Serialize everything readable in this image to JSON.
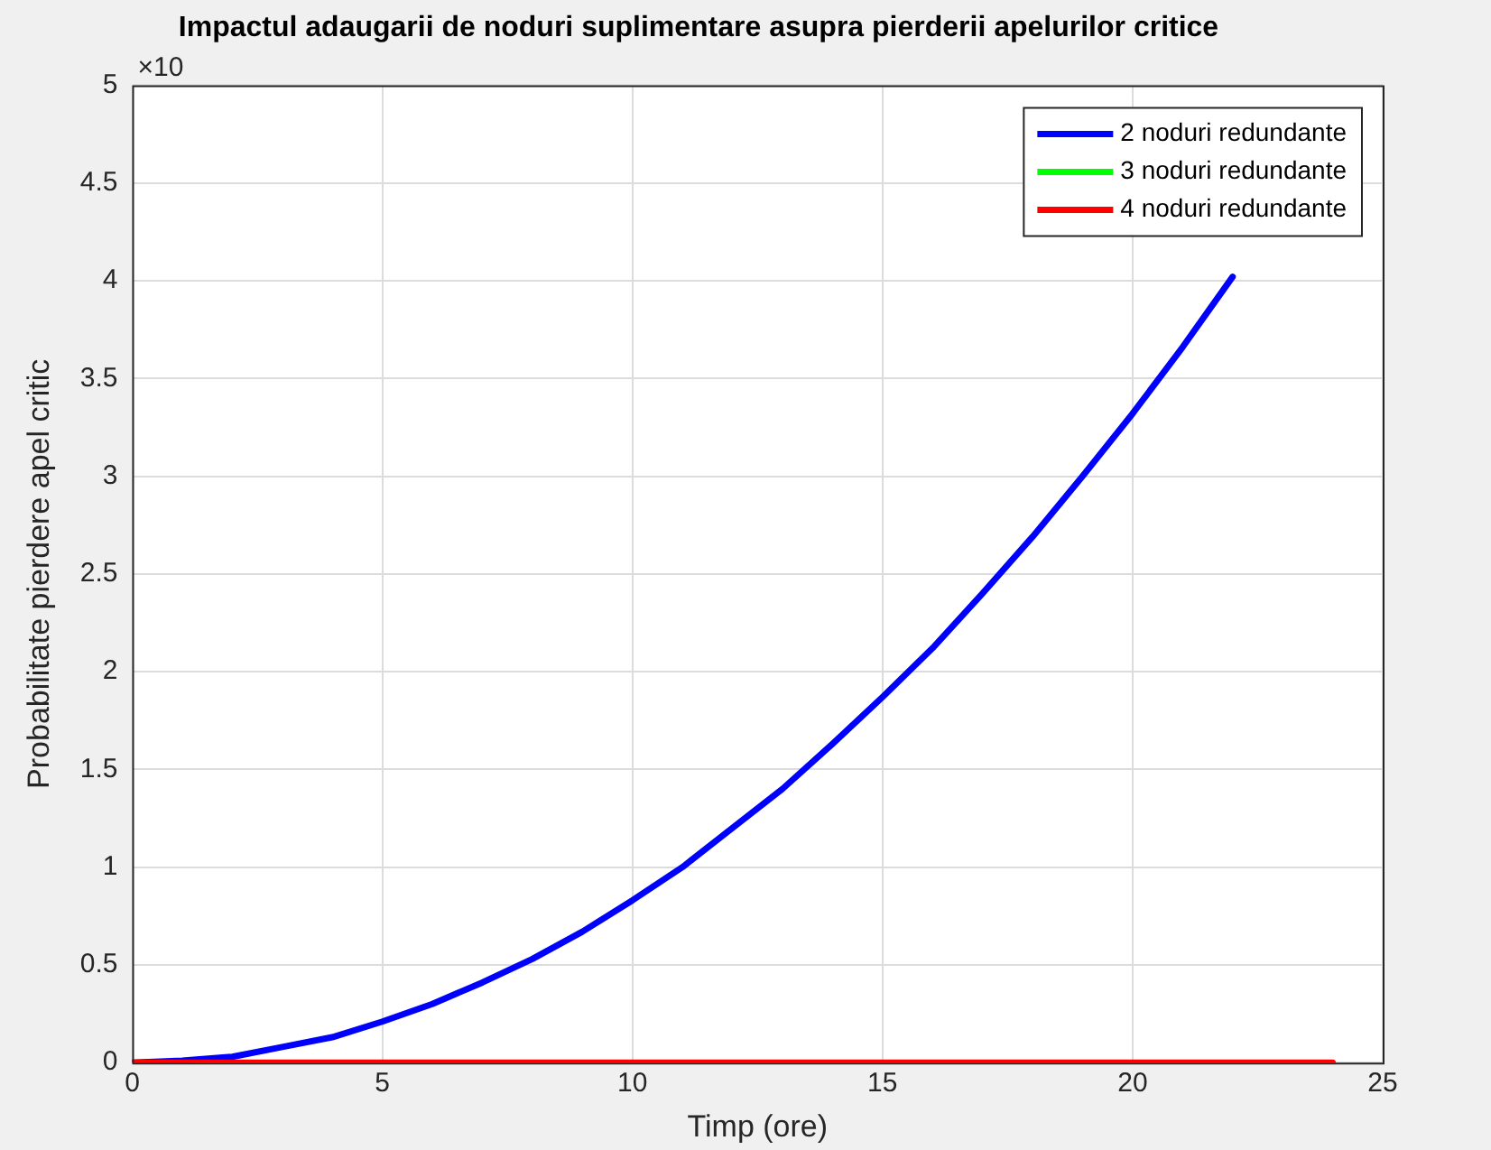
{
  "chart_data": {
    "type": "line",
    "title": "Impactul adaugarii de noduri suplimentare asupra pierderii apelurilor critice",
    "xlabel": "Timp (ore)",
    "ylabel": "Probabilitate pierdere apel critic",
    "annotations": [
      "×10"
    ],
    "series": [
      {
        "name": "2 noduri redundante",
        "color": "#0000ff",
        "x": [
          0,
          1,
          2,
          3,
          4,
          5,
          6,
          7,
          8,
          9,
          10,
          11,
          12,
          13,
          14,
          15,
          16,
          17,
          18,
          19,
          20,
          21,
          22
        ],
        "values": [
          0,
          0.01,
          0.03,
          0.08,
          0.13,
          0.21,
          0.3,
          0.41,
          0.53,
          0.67,
          0.83,
          1.0,
          1.2,
          1.4,
          1.63,
          1.87,
          2.12,
          2.4,
          2.69,
          3.0,
          3.32,
          3.66,
          4.02
        ]
      },
      {
        "name": "3 noduri redundante",
        "color": "#00ff00"
      },
      {
        "name": "4 noduri redundante",
        "color": "#ff0000",
        "x": [
          0,
          24
        ],
        "values": [
          0,
          0
        ]
      }
    ],
    "xlim": [
      0,
      25
    ],
    "xticks": [
      0,
      5,
      10,
      15,
      20,
      25
    ],
    "ylim": [
      0,
      5
    ],
    "yticks": [
      0,
      0.5,
      1,
      1.5,
      2,
      2.5,
      3,
      3.5,
      4,
      4.5,
      5
    ],
    "grid": true,
    "legend": "top right",
    "marker": "none",
    "line_style": "solid"
  }
}
